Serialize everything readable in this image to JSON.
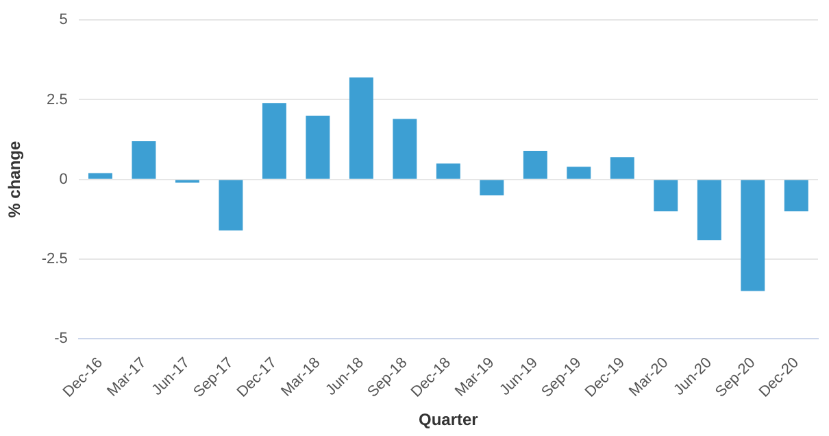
{
  "chart_data": {
    "type": "bar",
    "xlabel": "Quarter",
    "ylabel": "% change",
    "categories": [
      "Dec-16",
      "Mar-17",
      "Jun-17",
      "Sep-17",
      "Dec-17",
      "Mar-18",
      "Jun-18",
      "Sep-18",
      "Dec-18",
      "Mar-19",
      "Jun-19",
      "Sep-19",
      "Dec-19",
      "Mar-20",
      "Jun-20",
      "Sep-20",
      "Dec-20"
    ],
    "values": [
      0.2,
      1.2,
      -0.1,
      -1.6,
      2.4,
      2.0,
      3.2,
      1.9,
      0.5,
      -0.5,
      0.9,
      0.4,
      0.7,
      -1.0,
      -1.9,
      -3.5,
      -1.0
    ],
    "color": "#3d9fd3",
    "ylim": [
      -5,
      5
    ],
    "yticks": [
      -5,
      -2.5,
      0,
      2.5,
      5
    ],
    "grid": "y"
  }
}
